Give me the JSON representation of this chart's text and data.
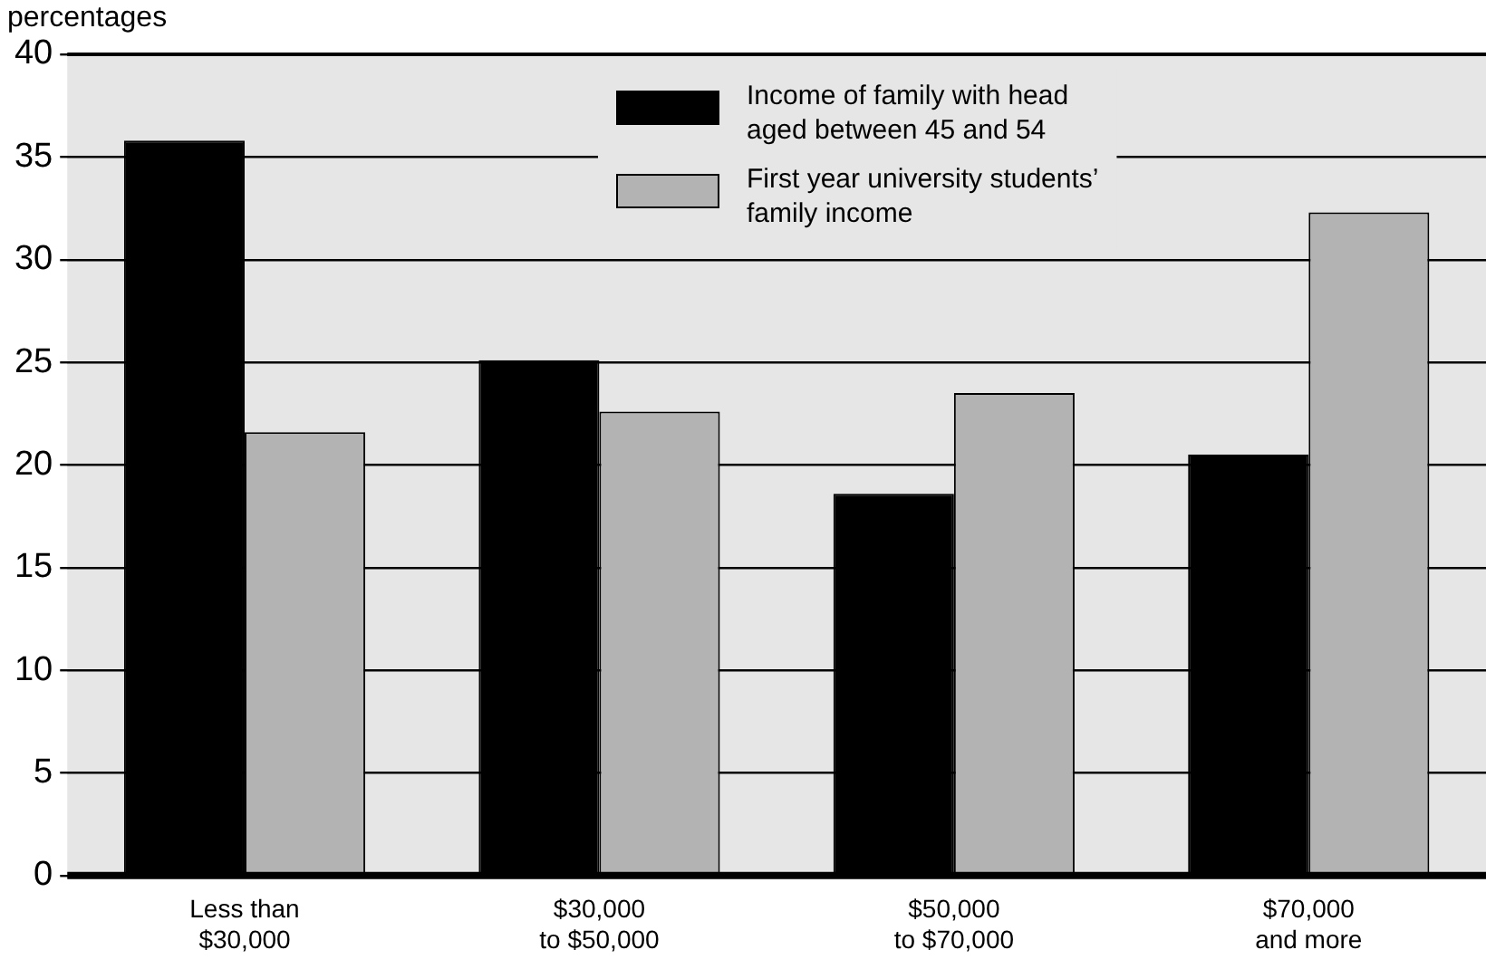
{
  "chart_data": {
    "type": "bar",
    "ylabel": "percentages",
    "categories": [
      "Less than\n$30,000",
      "$30,000\nto $50,000",
      "$50,000\nto $70,000",
      "$70,000\nand more"
    ],
    "series": [
      {
        "name": "Income of family with head aged between 45 and 54",
        "color": "#000000",
        "values": [
          35.8,
          25.1,
          18.6,
          20.5
        ]
      },
      {
        "name": "First year university students’ family income",
        "color": "#b3b3b3",
        "values": [
          21.6,
          22.6,
          23.5,
          32.3
        ]
      }
    ],
    "ylim": [
      0,
      40
    ],
    "yticks": [
      0,
      5,
      10,
      15,
      20,
      25,
      30,
      35,
      40
    ],
    "grid": "y",
    "legend": "top right"
  }
}
